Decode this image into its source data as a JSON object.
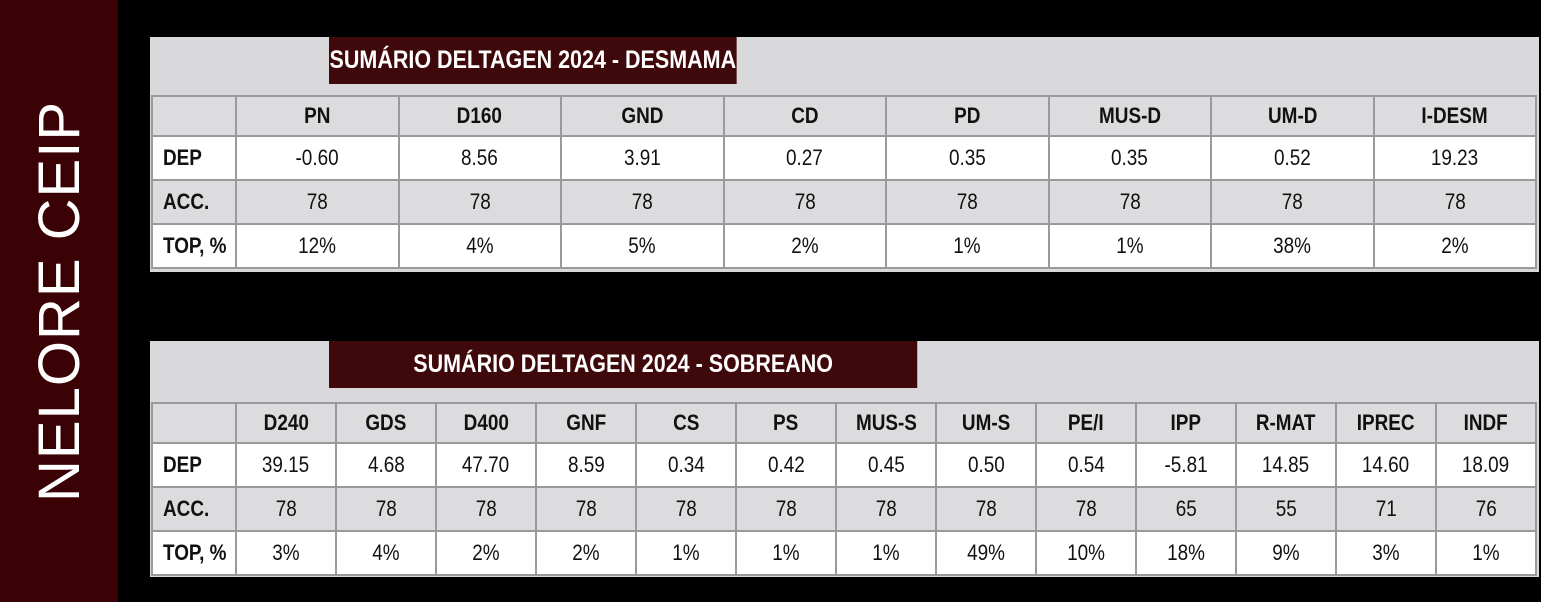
{
  "sidebar": {
    "label": "NELORE CEIP"
  },
  "colors": {
    "sidebar_bg": "#3a0204",
    "title_bg": "#3f080a",
    "panel_bg": "#d9d9db",
    "page_bg": "#000000"
  },
  "desmama": {
    "title": "SUMÁRIO DELTAGEN 2024 - DESMAMA",
    "columns": [
      "PN",
      "D160",
      "GND",
      "CD",
      "PD",
      "MUS-D",
      "UM-D",
      "I-DESM"
    ],
    "rows": [
      {
        "label": "DEP",
        "values": [
          "-0.60",
          "8.56",
          "3.91",
          "0.27",
          "0.35",
          "0.35",
          "0.52",
          "19.23"
        ]
      },
      {
        "label": "ACC.",
        "values": [
          "78",
          "78",
          "78",
          "78",
          "78",
          "78",
          "78",
          "78"
        ]
      },
      {
        "label": "TOP, %",
        "values": [
          "12%",
          "4%",
          "5%",
          "2%",
          "1%",
          "1%",
          "38%",
          "2%"
        ]
      }
    ]
  },
  "sobreano": {
    "title": "SUMÁRIO DELTAGEN 2024 - SOBREANO",
    "columns": [
      "D240",
      "GDS",
      "D400",
      "GNF",
      "CS",
      "PS",
      "MUS-S",
      "UM-S",
      "PE/I",
      "IPP",
      "R-MAT",
      "IPREC",
      "INDF"
    ],
    "rows": [
      {
        "label": "DEP",
        "values": [
          "39.15",
          "4.68",
          "47.70",
          "8.59",
          "0.34",
          "0.42",
          "0.45",
          "0.50",
          "0.54",
          "-5.81",
          "14.85",
          "14.60",
          "18.09"
        ]
      },
      {
        "label": "ACC.",
        "values": [
          "78",
          "78",
          "78",
          "78",
          "78",
          "78",
          "78",
          "78",
          "78",
          "65",
          "55",
          "71",
          "76"
        ]
      },
      {
        "label": "TOP, %",
        "values": [
          "3%",
          "4%",
          "2%",
          "2%",
          "1%",
          "1%",
          "1%",
          "49%",
          "10%",
          "18%",
          "9%",
          "3%",
          "1%"
        ]
      }
    ]
  }
}
